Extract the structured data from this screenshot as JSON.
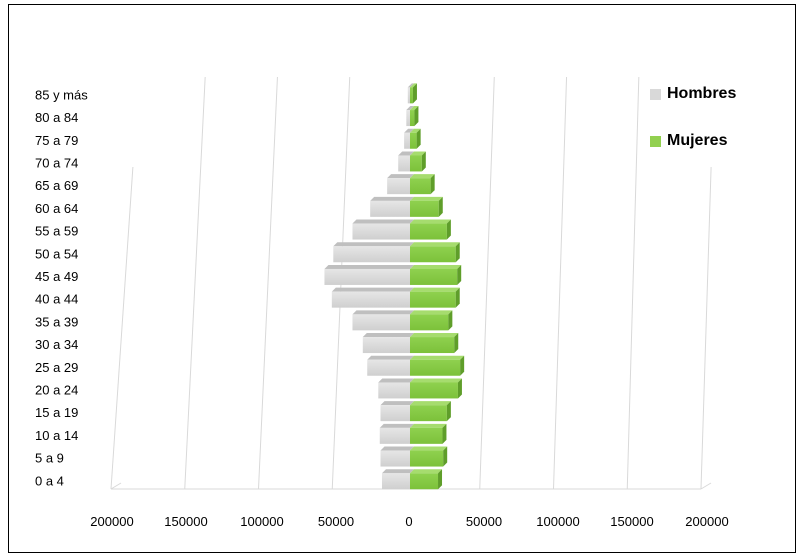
{
  "chart_data": {
    "type": "bar",
    "orientation": "horizontal",
    "layout": "population-pyramid",
    "categories": [
      "0 a 4",
      "5 a 9",
      "10 a 14",
      "15 a 19",
      "20 a 24",
      "25 a 29",
      "30 a 34",
      "35 a 39",
      "40 a 44",
      "45 a 49",
      "50 a 54",
      "55 a 59",
      "60 a 64",
      "65 a 69",
      "70 a 74",
      "75 a 79",
      "80 a 84",
      "85 y más"
    ],
    "series": [
      {
        "name": "Hombres",
        "color": "#d9d9d9",
        "values": [
          19000,
          20000,
          20500,
          20000,
          21500,
          29000,
          32000,
          39000,
          53000,
          58000,
          52000,
          39000,
          27000,
          15500,
          8000,
          4000,
          2500,
          1500
        ]
      },
      {
        "name": "Mujeres",
        "color": "#92d050",
        "values": [
          19000,
          22500,
          22000,
          25000,
          32500,
          34000,
          30000,
          26000,
          31000,
          32000,
          31000,
          25000,
          19500,
          14000,
          8000,
          4500,
          3000,
          2000
        ]
      }
    ],
    "x_tick_labels": [
      "200000",
      "150000",
      "100000",
      "50000",
      "0",
      "50000",
      "100000",
      "150000",
      "200000"
    ],
    "xlim": [
      -200000,
      200000
    ],
    "grid": true,
    "legend": "right",
    "title": "",
    "xlabel": "",
    "ylabel": ""
  }
}
